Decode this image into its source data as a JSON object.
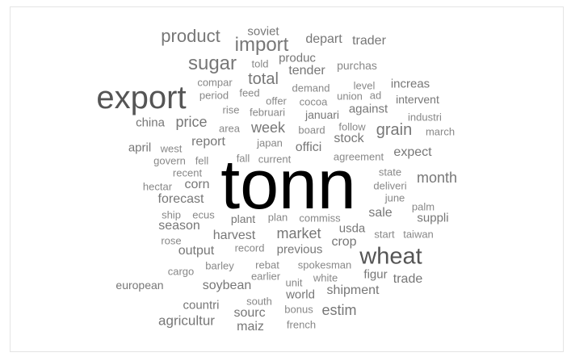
{
  "colors": {
    "strong": "#000000",
    "dark": "#555555",
    "mid": "#777777",
    "light": "#888888"
  },
  "words": [
    {
      "text": "tonn",
      "tone": "strong"
    },
    {
      "text": "export",
      "tone": "dark"
    },
    {
      "text": "wheat",
      "tone": "dark"
    },
    {
      "text": "import",
      "tone": "mid"
    },
    {
      "text": "sugar",
      "tone": "mid"
    },
    {
      "text": "product",
      "tone": "mid"
    },
    {
      "text": "total",
      "tone": "mid"
    },
    {
      "text": "grain",
      "tone": "mid"
    },
    {
      "text": "week",
      "tone": "mid"
    },
    {
      "text": "price",
      "tone": "mid"
    },
    {
      "text": "month",
      "tone": "mid"
    },
    {
      "text": "estim",
      "tone": "mid"
    },
    {
      "text": "market",
      "tone": "mid"
    },
    {
      "text": "soybean",
      "tone": "mid"
    },
    {
      "text": "agricultur",
      "tone": "mid"
    },
    {
      "text": "shipment",
      "tone": "mid"
    },
    {
      "text": "season",
      "tone": "mid"
    },
    {
      "text": "crop",
      "tone": "mid"
    },
    {
      "text": "stock",
      "tone": "mid"
    },
    {
      "text": "corn",
      "tone": "mid"
    },
    {
      "text": "output",
      "tone": "mid"
    },
    {
      "text": "maiz",
      "tone": "mid"
    },
    {
      "text": "sourc",
      "tone": "mid"
    },
    {
      "text": "trade",
      "tone": "mid"
    },
    {
      "text": "tender",
      "tone": "mid"
    },
    {
      "text": "trader",
      "tone": "mid"
    },
    {
      "text": "depart",
      "tone": "mid"
    },
    {
      "text": "report",
      "tone": "mid"
    },
    {
      "text": "offici",
      "tone": "mid"
    },
    {
      "text": "sale",
      "tone": "mid"
    },
    {
      "text": "expect",
      "tone": "mid"
    },
    {
      "text": "harvest",
      "tone": "mid"
    },
    {
      "text": "forecast",
      "tone": "mid"
    },
    {
      "text": "china",
      "tone": "mid"
    },
    {
      "text": "april",
      "tone": "mid"
    },
    {
      "text": "increas",
      "tone": "mid"
    },
    {
      "text": "against",
      "tone": "mid"
    },
    {
      "text": "produc",
      "tone": "mid"
    },
    {
      "text": "soviet",
      "tone": "mid"
    },
    {
      "text": "countri",
      "tone": "mid"
    },
    {
      "text": "figur",
      "tone": "mid"
    },
    {
      "text": "world",
      "tone": "mid"
    },
    {
      "text": "suppli",
      "tone": "mid"
    },
    {
      "text": "previous",
      "tone": "mid"
    },
    {
      "text": "usda",
      "tone": "mid"
    },
    {
      "text": "plant",
      "tone": "mid"
    },
    {
      "text": "european",
      "tone": "mid"
    },
    {
      "text": "januari",
      "tone": "mid"
    },
    {
      "text": "intervent",
      "tone": "mid"
    },
    {
      "text": "purchas",
      "tone": "light"
    },
    {
      "text": "compar",
      "tone": "light"
    },
    {
      "text": "period",
      "tone": "light"
    },
    {
      "text": "area",
      "tone": "light"
    },
    {
      "text": "rise",
      "tone": "light"
    },
    {
      "text": "februari",
      "tone": "light"
    },
    {
      "text": "offer",
      "tone": "light"
    },
    {
      "text": "demand",
      "tone": "light"
    },
    {
      "text": "cocoa",
      "tone": "light"
    },
    {
      "text": "union",
      "tone": "light"
    },
    {
      "text": "level",
      "tone": "light"
    },
    {
      "text": "ad",
      "tone": "light"
    },
    {
      "text": "industri",
      "tone": "light"
    },
    {
      "text": "march",
      "tone": "light"
    },
    {
      "text": "told",
      "tone": "light"
    },
    {
      "text": "feed",
      "tone": "light"
    },
    {
      "text": "board",
      "tone": "light"
    },
    {
      "text": "follow",
      "tone": "light"
    },
    {
      "text": "japan",
      "tone": "light"
    },
    {
      "text": "west",
      "tone": "light"
    },
    {
      "text": "govern",
      "tone": "light"
    },
    {
      "text": "fell",
      "tone": "light"
    },
    {
      "text": "fall",
      "tone": "light"
    },
    {
      "text": "current",
      "tone": "light"
    },
    {
      "text": "agreement",
      "tone": "light"
    },
    {
      "text": "recent",
      "tone": "light"
    },
    {
      "text": "state",
      "tone": "light"
    },
    {
      "text": "hectar",
      "tone": "light"
    },
    {
      "text": "deliveri",
      "tone": "light"
    },
    {
      "text": "june",
      "tone": "light"
    },
    {
      "text": "ship",
      "tone": "light"
    },
    {
      "text": "ecus",
      "tone": "light"
    },
    {
      "text": "plan",
      "tone": "light"
    },
    {
      "text": "commiss",
      "tone": "light"
    },
    {
      "text": "palm",
      "tone": "light"
    },
    {
      "text": "rose",
      "tone": "light"
    },
    {
      "text": "start",
      "tone": "light"
    },
    {
      "text": "taiwan",
      "tone": "light"
    },
    {
      "text": "record",
      "tone": "light"
    },
    {
      "text": "cargo",
      "tone": "light"
    },
    {
      "text": "barley",
      "tone": "light"
    },
    {
      "text": "rebat",
      "tone": "light"
    },
    {
      "text": "spokesman",
      "tone": "light"
    },
    {
      "text": "earlier",
      "tone": "light"
    },
    {
      "text": "unit",
      "tone": "light"
    },
    {
      "text": "white",
      "tone": "light"
    },
    {
      "text": "south",
      "tone": "light"
    },
    {
      "text": "bonus",
      "tone": "light"
    },
    {
      "text": "french",
      "tone": "light"
    }
  ]
}
